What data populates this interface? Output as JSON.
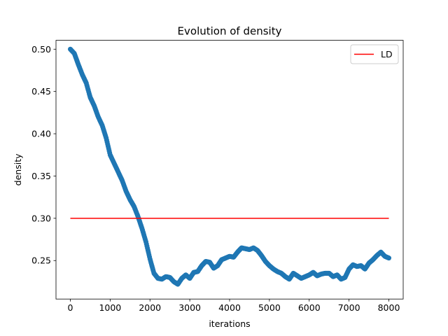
{
  "chart_data": {
    "type": "scatter",
    "title": "Evolution of density",
    "xlabel": "iterations",
    "ylabel": "density",
    "xlim": [
      -360,
      8360
    ],
    "ylim": [
      0.2045,
      0.5105
    ],
    "xticks": [
      0,
      1000,
      2000,
      3000,
      4000,
      5000,
      6000,
      7000,
      8000
    ],
    "xtick_labels": [
      "0",
      "1000",
      "2000",
      "3000",
      "4000",
      "5000",
      "6000",
      "7000",
      "8000"
    ],
    "yticks": [
      0.25,
      0.3,
      0.35,
      0.4,
      0.45,
      0.5
    ],
    "ytick_labels": [
      "0.25",
      "0.30",
      "0.35",
      "0.40",
      "0.45",
      "0.50"
    ],
    "grid": false,
    "legend_position": "top-right",
    "series": [
      {
        "name": "",
        "kind": "scatter",
        "color": "#1f77b4",
        "x": [
          0,
          100,
          200,
          300,
          400,
          500,
          600,
          700,
          800,
          900,
          1000,
          1100,
          1200,
          1300,
          1400,
          1500,
          1600,
          1700,
          1800,
          1900,
          2000,
          2100,
          2200,
          2300,
          2400,
          2500,
          2600,
          2700,
          2800,
          2900,
          3000,
          3100,
          3200,
          3300,
          3400,
          3500,
          3600,
          3700,
          3800,
          3900,
          4000,
          4100,
          4200,
          4300,
          4400,
          4500,
          4600,
          4700,
          4800,
          4900,
          5000,
          5100,
          5200,
          5300,
          5400,
          5500,
          5600,
          5700,
          5800,
          5900,
          6000,
          6100,
          6200,
          6300,
          6400,
          6500,
          6600,
          6700,
          6800,
          6900,
          7000,
          7100,
          7200,
          7300,
          7400,
          7500,
          7600,
          7700,
          7800,
          7900,
          8000
        ],
        "y": [
          0.5,
          0.495,
          0.482,
          0.47,
          0.46,
          0.443,
          0.433,
          0.42,
          0.41,
          0.395,
          0.375,
          0.365,
          0.355,
          0.345,
          0.332,
          0.322,
          0.314,
          0.302,
          0.288,
          0.272,
          0.252,
          0.235,
          0.229,
          0.228,
          0.231,
          0.23,
          0.225,
          0.222,
          0.229,
          0.233,
          0.229,
          0.236,
          0.237,
          0.244,
          0.249,
          0.248,
          0.241,
          0.244,
          0.251,
          0.253,
          0.255,
          0.254,
          0.26,
          0.265,
          0.264,
          0.263,
          0.265,
          0.262,
          0.256,
          0.249,
          0.244,
          0.24,
          0.237,
          0.235,
          0.231,
          0.228,
          0.235,
          0.232,
          0.229,
          0.231,
          0.233,
          0.236,
          0.232,
          0.234,
          0.235,
          0.235,
          0.231,
          0.233,
          0.228,
          0.23,
          0.24,
          0.245,
          0.243,
          0.244,
          0.24,
          0.247,
          0.251,
          0.256,
          0.26,
          0.255,
          0.253
        ]
      },
      {
        "name": "LD",
        "kind": "line",
        "color": "#ff0000",
        "x": [
          0,
          8000
        ],
        "y": [
          0.3,
          0.3
        ]
      }
    ]
  }
}
